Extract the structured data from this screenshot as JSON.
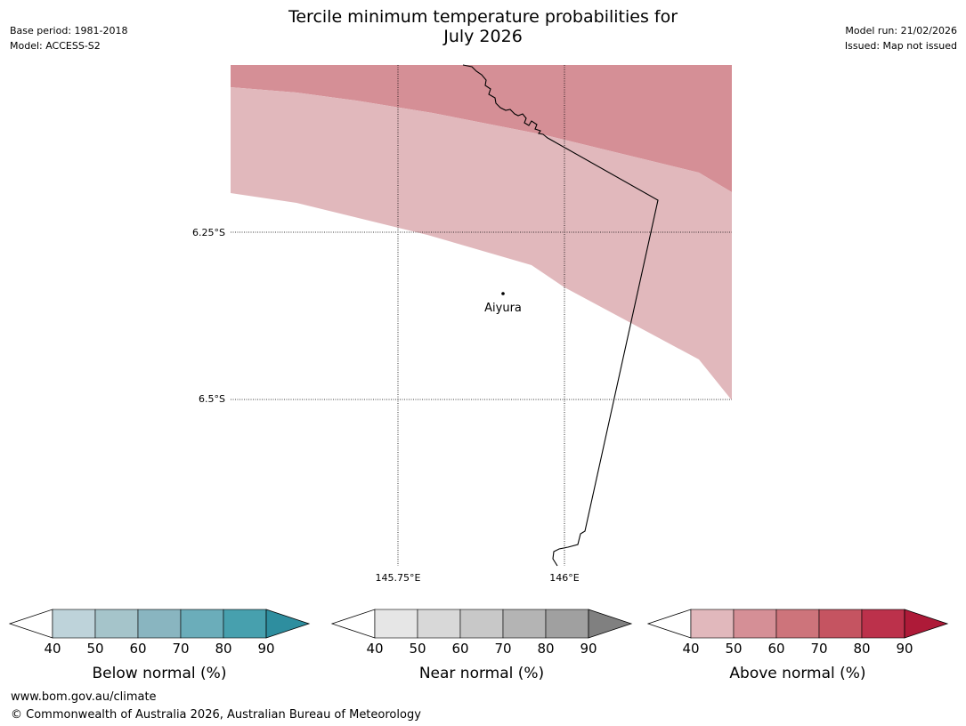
{
  "title": {
    "line1": "Tercile minimum temperature probabilities for",
    "line2": "July 2026"
  },
  "meta_left": {
    "base_period": "Base period: 1981-2018",
    "model": "Model: ACCESS-S2"
  },
  "meta_right": {
    "model_run": "Model run: 21/02/2026",
    "issued": "Issued: Map not issued"
  },
  "map": {
    "lat_labels": [
      "6.25°S",
      "6.5°S"
    ],
    "lon_labels": [
      "145.75°E",
      "146°E"
    ],
    "place": {
      "name": "Aiyura",
      "lon": 145.9,
      "lat": -6.34
    },
    "extent": {
      "lon_min": 145.5,
      "lon_max": 146.25,
      "lat_min": -6.75,
      "lat_max": -5.99
    }
  },
  "legends": [
    {
      "label": "Below normal (%)",
      "ticks": [
        "40",
        "50",
        "60",
        "70",
        "80",
        "90"
      ],
      "colors": [
        "#bed3da",
        "#a5c4ca",
        "#89b5c0",
        "#6badba",
        "#47a0ae",
        "#2e8e9f"
      ]
    },
    {
      "label": "Near normal (%)",
      "ticks": [
        "40",
        "50",
        "60",
        "70",
        "80",
        "90"
      ],
      "colors": [
        "#e6e6e6",
        "#d8d8d8",
        "#c8c8c8",
        "#b4b4b4",
        "#a0a0a0",
        "#808080"
      ]
    },
    {
      "label": "Above normal (%)",
      "ticks": [
        "40",
        "50",
        "60",
        "70",
        "80",
        "90"
      ],
      "colors": [
        "#e1b8bc",
        "#d58f96",
        "#cd747b",
        "#c55461",
        "#bc314b",
        "#ae1a38"
      ]
    }
  ],
  "footer": {
    "url": "www.bom.gov.au/climate",
    "copyright": "© Commonwealth of Australia 2026, Australian Bureau of Meteorology"
  }
}
